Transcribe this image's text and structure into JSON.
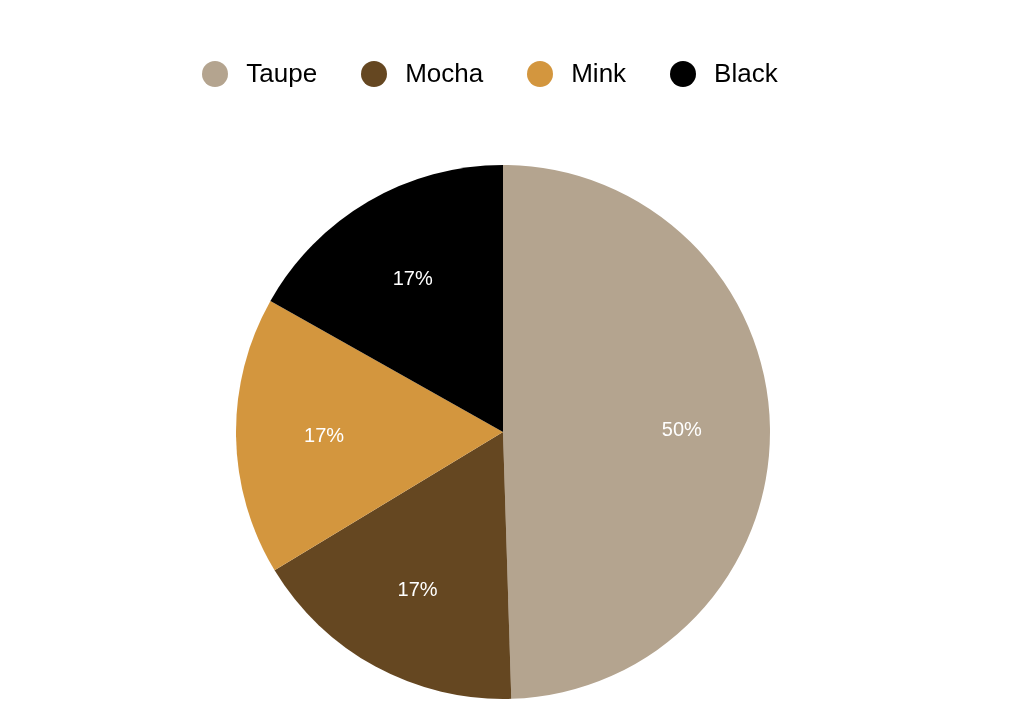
{
  "chart_data": {
    "type": "pie",
    "categories": [
      "Taupe",
      "Mocha",
      "Mink",
      "Black"
    ],
    "values": [
      50,
      17,
      17,
      17
    ],
    "value_labels": [
      "50%",
      "17%",
      "17%",
      "17%"
    ],
    "colors": [
      "#b4a48f",
      "#654721",
      "#d3963e",
      "#000000"
    ],
    "legend": "top"
  }
}
